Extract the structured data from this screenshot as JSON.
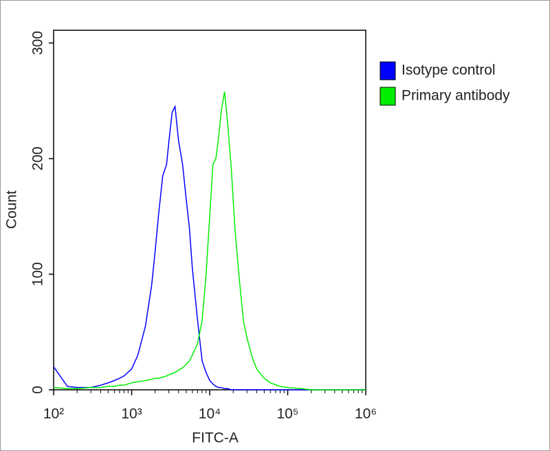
{
  "chart_data": {
    "type": "line",
    "xlabel": "FITC-A",
    "ylabel": "Count",
    "xscale": "log",
    "xlim": [
      100,
      1000000
    ],
    "ylim": [
      0,
      311
    ],
    "xticks": [
      {
        "value": 100,
        "label": "10²"
      },
      {
        "value": 1000,
        "label": "10³"
      },
      {
        "value": 10000,
        "label": "10⁴"
      },
      {
        "value": 100000,
        "label": "10⁵"
      },
      {
        "value": 1000000,
        "label": "10⁶"
      }
    ],
    "xminorticks": [
      200,
      300,
      400,
      500,
      600,
      700,
      800,
      900,
      2000,
      3000,
      4000,
      5000,
      6000,
      7000,
      8000,
      9000,
      20000,
      30000,
      40000,
      50000,
      60000,
      70000,
      80000,
      90000,
      200000,
      300000,
      400000,
      500000,
      600000,
      700000,
      800000,
      900000
    ],
    "yticks": [
      0,
      100,
      200,
      300
    ],
    "legend": "top-right",
    "x": [
      100,
      150,
      200,
      300,
      400,
      500,
      600,
      700,
      800,
      1000,
      1200,
      1500,
      1800,
      2000,
      2200,
      2500,
      2800,
      3000,
      3300,
      3600,
      4000,
      4500,
      5000,
      5500,
      6000,
      7000,
      8000,
      9000,
      10000,
      11000,
      12000,
      13000,
      14000,
      15500,
      17000,
      19000,
      21000,
      24000,
      27000,
      30000,
      35000,
      40000,
      50000,
      60000,
      80000,
      100000,
      150000,
      200000,
      300000,
      500000,
      1000000
    ],
    "series": [
      {
        "name": "Isotype control",
        "color": "#0000ff",
        "values": [
          20,
          3,
          2,
          2,
          4,
          6,
          8,
          10,
          12,
          18,
          30,
          55,
          90,
          120,
          150,
          185,
          195,
          215,
          240,
          245,
          215,
          195,
          165,
          140,
          105,
          60,
          25,
          15,
          8,
          5,
          3,
          2,
          2,
          1,
          1,
          0,
          0,
          0,
          0,
          0,
          0,
          0,
          0,
          0,
          0,
          0,
          0,
          0,
          0,
          0,
          0
        ]
      },
      {
        "name": "Primary antibody",
        "color": "#00ee00",
        "values": [
          2,
          1,
          1,
          2,
          2,
          3,
          3,
          4,
          4,
          6,
          7,
          8,
          9,
          10,
          10,
          11,
          12,
          13,
          14,
          15,
          17,
          19,
          22,
          25,
          30,
          40,
          60,
          100,
          150,
          195,
          200,
          218,
          240,
          258,
          230,
          190,
          140,
          95,
          60,
          45,
          28,
          18,
          10,
          6,
          3,
          2,
          1,
          0,
          0,
          0,
          0
        ]
      }
    ]
  }
}
